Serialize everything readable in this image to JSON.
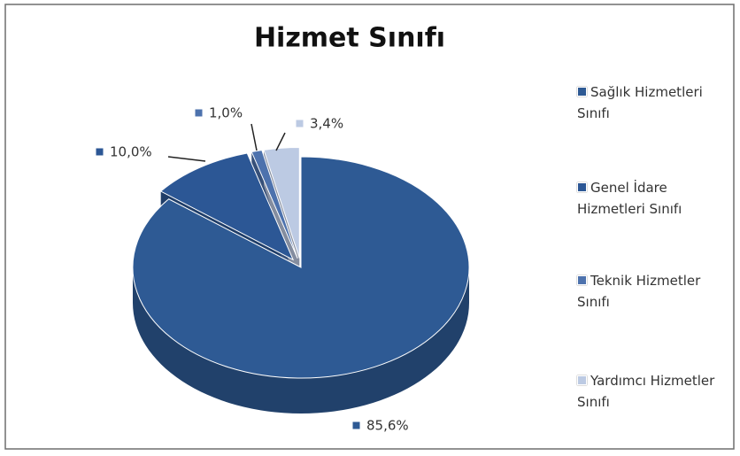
{
  "chart_data": {
    "type": "pie3d",
    "title": "Hizmet Sınıfı",
    "categories": [
      "Sağlık Hizmetleri Sınıfı",
      "Genel İdare Hizmetleri Sınıfı",
      "Teknik Hizmetler Sınıfı",
      "Yardımcı Hizmetler Sınıfı"
    ],
    "values": [
      85.6,
      10.0,
      1.0,
      3.4
    ],
    "value_labels": [
      "85,6%",
      "10,0%",
      "1,0%",
      "3,4%"
    ],
    "colors": [
      "#2e5a94",
      "#2c5795",
      "#4d72ad",
      "#bccae3"
    ],
    "legend": "right"
  }
}
